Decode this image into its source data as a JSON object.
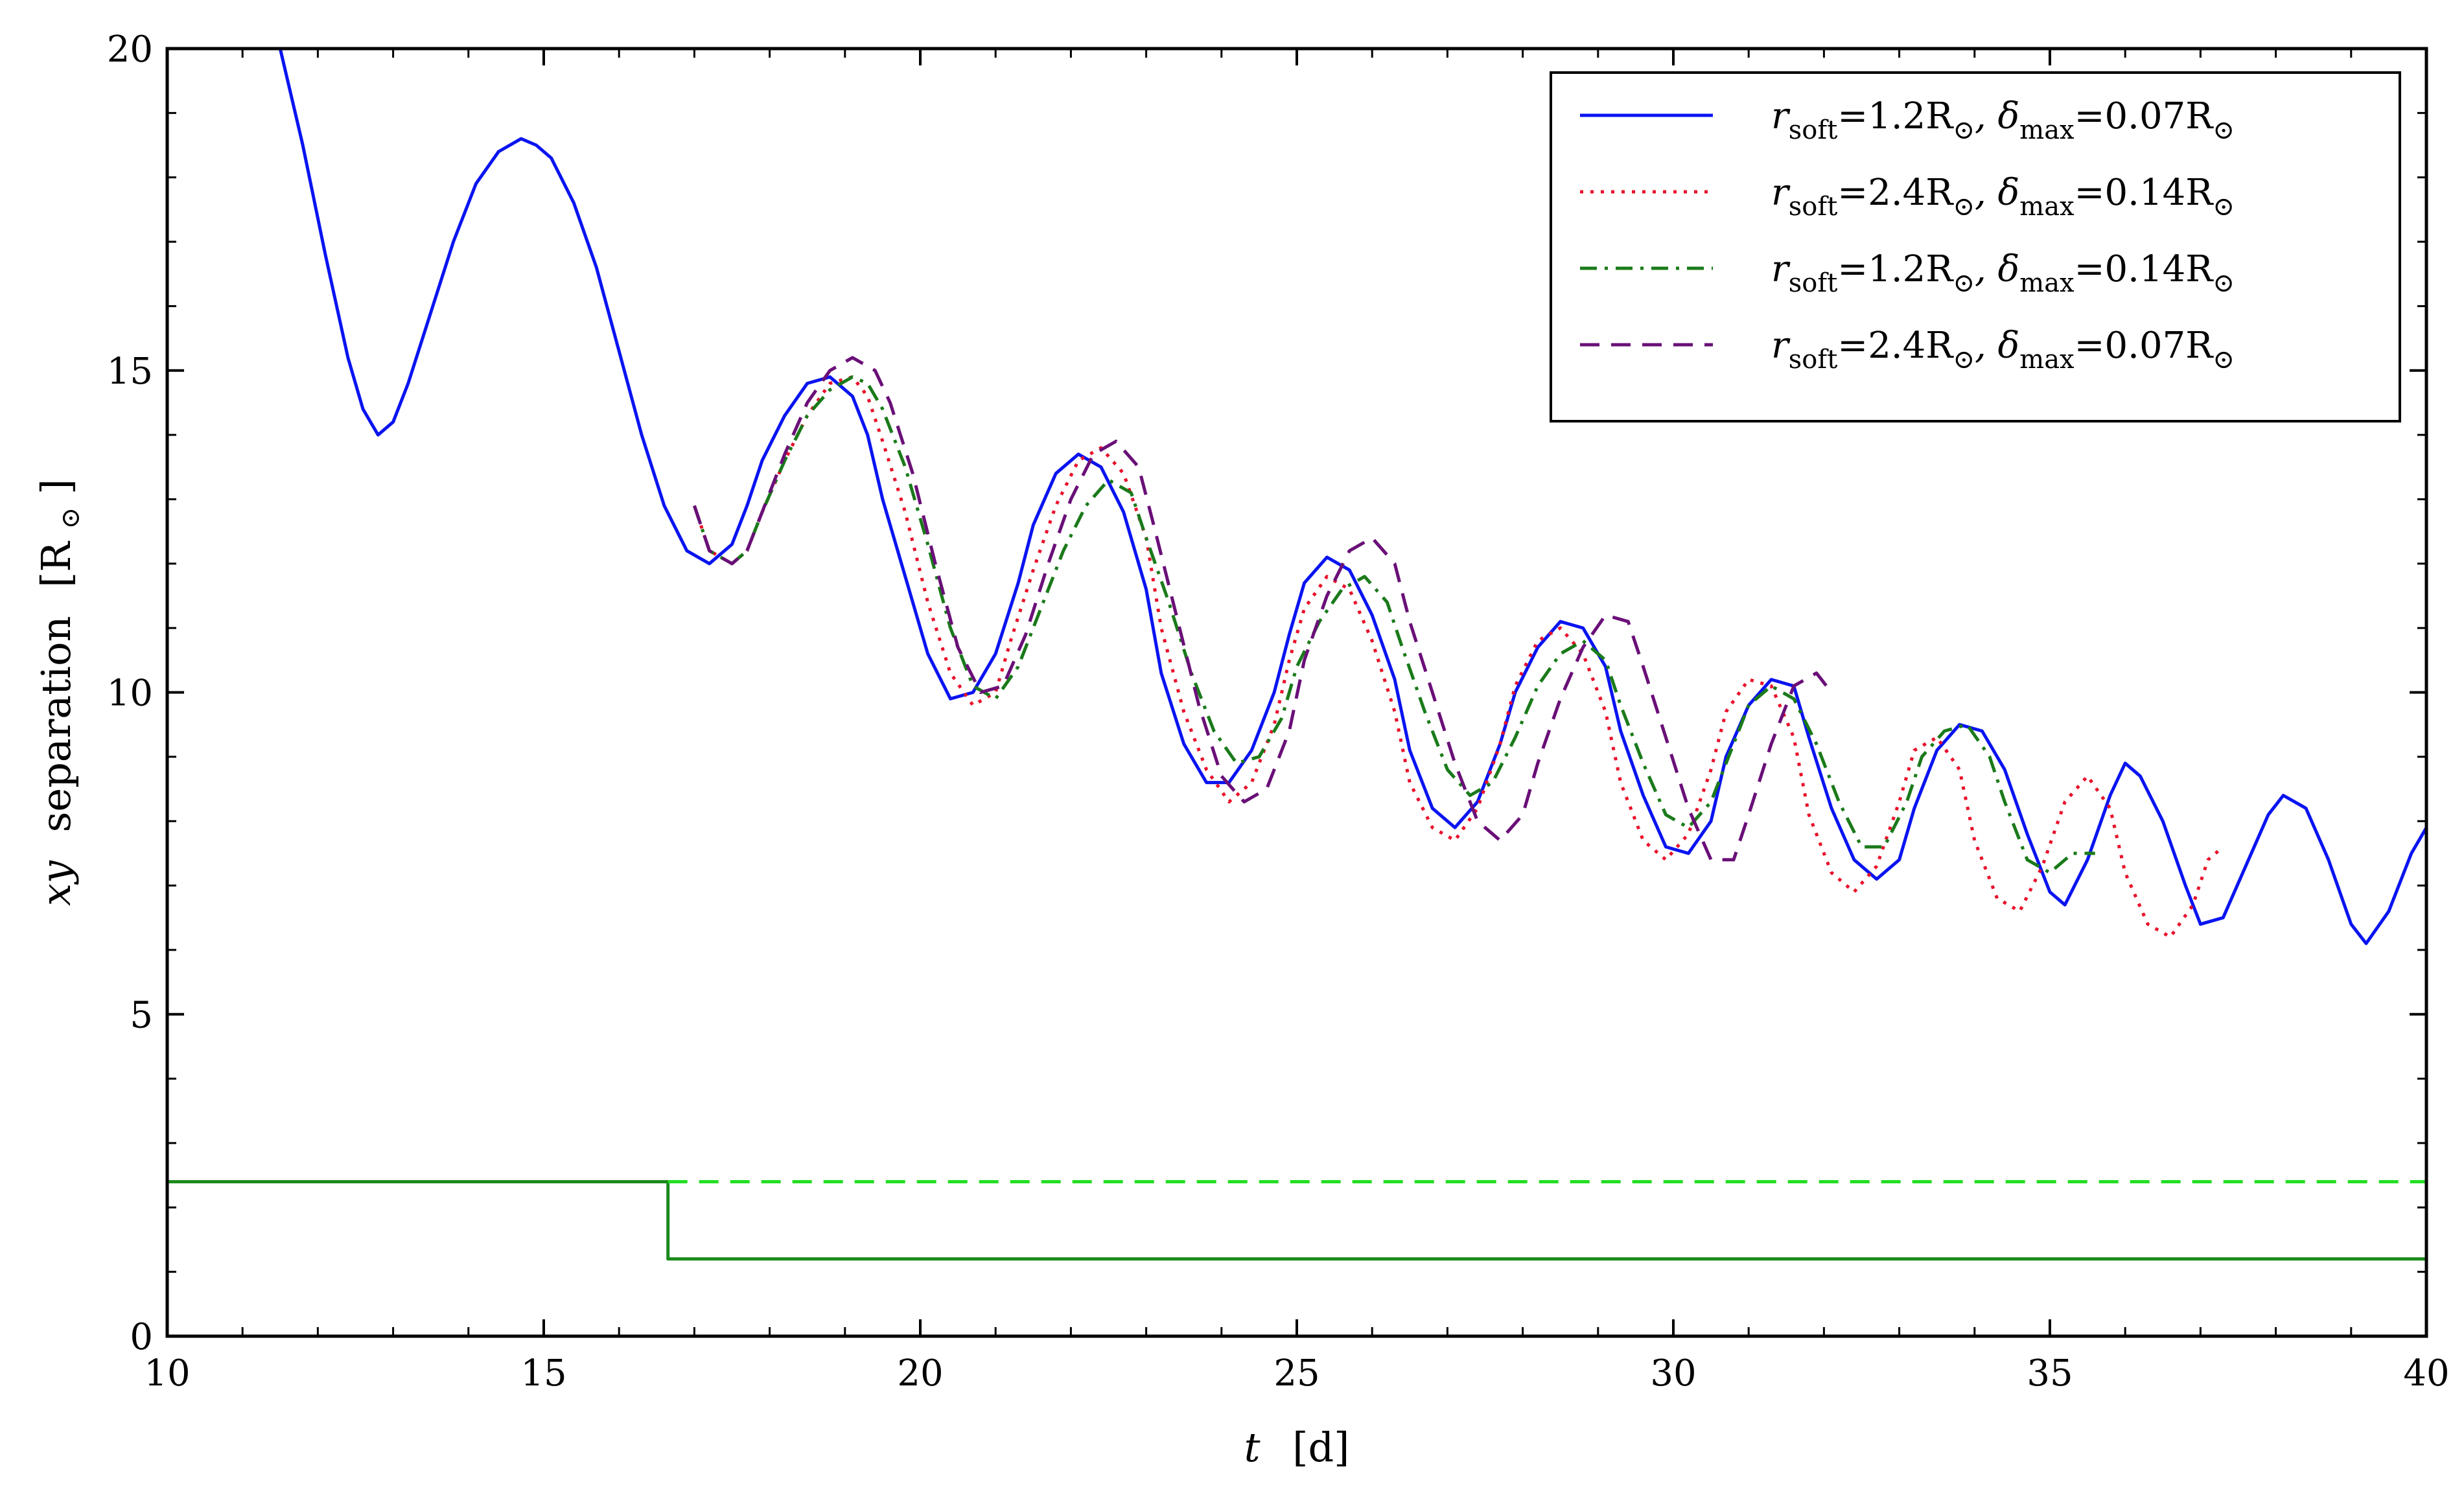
{
  "chart_data": {
    "type": "line",
    "title": "",
    "xlabel": {
      "symbol": "t",
      "unit": "[d]"
    },
    "ylabel": {
      "symbol": "xy",
      "word": "separation",
      "unit": "[R",
      "unit_sub": "⊙",
      "unit_close": "]"
    },
    "xlim": [
      10,
      40
    ],
    "ylim": [
      0,
      20
    ],
    "xticks": [
      10,
      15,
      20,
      25,
      30,
      35,
      40
    ],
    "yticks": [
      0,
      5,
      10,
      15,
      20
    ],
    "grid": false,
    "legend_position": "top-right",
    "series": [
      {
        "label_parts": [
          "r",
          "soft",
          "=1.2R",
          "⊙",
          ", δ",
          "max",
          "=0.07R",
          "⊙"
        ],
        "color": "#0a14f0",
        "style": "solid",
        "x": [
          11.5,
          11.8,
          12.1,
          12.4,
          12.6,
          12.8,
          13.0,
          13.2,
          13.5,
          13.8,
          14.1,
          14.4,
          14.7,
          14.9,
          15.1,
          15.4,
          15.7,
          16.0,
          16.3,
          16.6,
          16.9,
          17.2,
          17.5,
          17.7,
          17.9,
          18.2,
          18.5,
          18.8,
          19.1,
          19.3,
          19.5,
          19.8,
          20.1,
          20.4,
          20.7,
          21.0,
          21.3,
          21.5,
          21.8,
          22.1,
          22.4,
          22.7,
          23.0,
          23.2,
          23.5,
          23.8,
          24.1,
          24.4,
          24.7,
          24.9,
          25.1,
          25.4,
          25.7,
          26.0,
          26.3,
          26.5,
          26.8,
          27.1,
          27.4,
          27.7,
          27.9,
          28.2,
          28.5,
          28.8,
          29.1,
          29.3,
          29.6,
          29.9,
          30.2,
          30.5,
          30.7,
          31.0,
          31.3,
          31.6,
          31.8,
          32.1,
          32.4,
          32.7,
          33.0,
          33.2,
          33.5,
          33.8,
          34.1,
          34.4,
          34.7,
          35.0,
          35.2,
          35.5,
          35.8,
          36.0,
          36.2,
          36.5,
          36.8,
          37.0,
          37.3,
          37.6,
          37.9,
          38.1,
          38.4,
          38.7,
          39.0,
          39.2,
          39.5,
          39.8,
          40.0
        ],
        "y": [
          20.0,
          18.5,
          16.8,
          15.2,
          14.4,
          14.0,
          14.2,
          14.8,
          15.9,
          17.0,
          17.9,
          18.4,
          18.6,
          18.5,
          18.3,
          17.6,
          16.6,
          15.3,
          14.0,
          12.9,
          12.2,
          12.0,
          12.3,
          12.9,
          13.6,
          14.3,
          14.8,
          14.9,
          14.6,
          14.0,
          13.0,
          11.8,
          10.6,
          9.9,
          10.0,
          10.6,
          11.7,
          12.6,
          13.4,
          13.7,
          13.5,
          12.8,
          11.6,
          10.3,
          9.2,
          8.6,
          8.6,
          9.1,
          10.0,
          10.9,
          11.7,
          12.1,
          11.9,
          11.2,
          10.2,
          9.1,
          8.2,
          7.9,
          8.3,
          9.2,
          10.0,
          10.7,
          11.1,
          11.0,
          10.4,
          9.4,
          8.4,
          7.6,
          7.5,
          8.0,
          9.0,
          9.8,
          10.2,
          10.1,
          9.3,
          8.2,
          7.4,
          7.1,
          7.4,
          8.2,
          9.1,
          9.5,
          9.4,
          8.8,
          7.8,
          6.9,
          6.7,
          7.4,
          8.4,
          8.9,
          8.7,
          8.0,
          7.0,
          6.4,
          6.5,
          7.3,
          8.1,
          8.4,
          8.2,
          7.4,
          6.4,
          6.1,
          6.6,
          7.5,
          7.9
        ]
      },
      {
        "label_parts": [
          "r",
          "soft",
          "=2.4R",
          "⊙",
          ", δ",
          "max",
          "=0.14R",
          "⊙"
        ],
        "color": "#e8102a",
        "style": "dotted",
        "x": [
          17.0,
          17.2,
          17.5,
          17.7,
          17.9,
          18.2,
          18.5,
          18.8,
          19.1,
          19.3,
          19.5,
          19.8,
          20.1,
          20.4,
          20.7,
          21.0,
          21.2,
          21.5,
          21.8,
          22.1,
          22.4,
          22.7,
          23.0,
          23.2,
          23.5,
          23.8,
          24.1,
          24.4,
          24.7,
          24.9,
          25.1,
          25.4,
          25.7,
          26.0,
          26.3,
          26.5,
          26.8,
          27.1,
          27.4,
          27.7,
          27.9,
          28.2,
          28.5,
          28.8,
          29.1,
          29.3,
          29.6,
          29.9,
          30.2,
          30.5,
          30.7,
          31.0,
          31.3,
          31.6,
          31.8,
          32.1,
          32.4,
          32.7,
          33.0,
          33.2,
          33.5,
          33.8,
          34.0,
          34.3,
          34.6,
          34.9,
          35.2,
          35.5,
          35.8,
          36.0,
          36.3,
          36.6,
          36.9,
          37.1,
          37.3
        ],
        "y": [
          12.9,
          12.2,
          12.0,
          12.2,
          12.8,
          13.6,
          14.3,
          14.8,
          14.9,
          14.6,
          13.9,
          12.8,
          11.4,
          10.3,
          9.8,
          10.0,
          10.8,
          11.9,
          12.9,
          13.6,
          13.8,
          13.4,
          12.4,
          11.0,
          9.7,
          8.8,
          8.3,
          8.6,
          9.5,
          10.5,
          11.3,
          11.8,
          11.6,
          10.8,
          9.7,
          8.6,
          7.9,
          7.7,
          8.2,
          9.2,
          10.1,
          10.8,
          11.0,
          10.6,
          9.7,
          8.6,
          7.7,
          7.4,
          7.8,
          8.8,
          9.7,
          10.2,
          10.1,
          9.3,
          8.1,
          7.2,
          6.9,
          7.3,
          8.3,
          9.1,
          9.3,
          8.8,
          7.7,
          6.8,
          6.6,
          7.3,
          8.3,
          8.7,
          8.2,
          7.2,
          6.4,
          6.2,
          6.7,
          7.4,
          7.6
        ]
      },
      {
        "label_parts": [
          "r",
          "soft",
          "=1.2R",
          "⊙",
          ", δ",
          "max",
          "=0.14R",
          "⊙"
        ],
        "color": "#1a7a1a",
        "style": "dashdot",
        "x": [
          17.0,
          17.2,
          17.5,
          17.7,
          17.9,
          18.2,
          18.5,
          18.8,
          19.1,
          19.3,
          19.5,
          19.8,
          20.1,
          20.4,
          20.7,
          21.0,
          21.3,
          21.6,
          21.9,
          22.2,
          22.5,
          22.8,
          23.0,
          23.3,
          23.6,
          23.9,
          24.2,
          24.5,
          24.8,
          25.0,
          25.3,
          25.6,
          25.9,
          26.2,
          26.4,
          26.7,
          27.0,
          27.3,
          27.6,
          27.9,
          28.2,
          28.5,
          28.8,
          29.1,
          29.3,
          29.6,
          29.9,
          30.2,
          30.5,
          30.8,
          31.0,
          31.3,
          31.6,
          31.9,
          32.2,
          32.5,
          32.8,
          33.1,
          33.3,
          33.6,
          33.9,
          34.2,
          34.4,
          34.7,
          35.0,
          35.3,
          35.6
        ],
        "y": [
          12.9,
          12.2,
          12.0,
          12.2,
          12.8,
          13.6,
          14.3,
          14.7,
          14.9,
          14.8,
          14.4,
          13.5,
          12.3,
          11.0,
          10.1,
          9.9,
          10.4,
          11.3,
          12.2,
          12.9,
          13.3,
          13.1,
          12.4,
          11.4,
          10.3,
          9.4,
          8.9,
          9.0,
          9.6,
          10.4,
          11.1,
          11.6,
          11.8,
          11.4,
          10.7,
          9.7,
          8.8,
          8.4,
          8.6,
          9.3,
          10.1,
          10.6,
          10.8,
          10.5,
          9.8,
          8.9,
          8.1,
          7.9,
          8.3,
          9.2,
          9.8,
          10.1,
          9.9,
          9.2,
          8.3,
          7.6,
          7.6,
          8.3,
          9.0,
          9.4,
          9.5,
          9.0,
          8.3,
          7.4,
          7.2,
          7.5,
          7.5
        ]
      },
      {
        "label_parts": [
          "r",
          "soft",
          "=2.4R",
          "⊙",
          ", δ",
          "max",
          "=0.07R",
          "⊙"
        ],
        "color": "#6a0f78",
        "style": "dashed",
        "x": [
          17.0,
          17.2,
          17.5,
          17.7,
          17.9,
          18.2,
          18.5,
          18.8,
          19.1,
          19.4,
          19.6,
          19.9,
          20.2,
          20.5,
          20.8,
          21.1,
          21.4,
          21.7,
          22.0,
          22.3,
          22.6,
          22.9,
          23.1,
          23.4,
          23.7,
          24.0,
          24.3,
          24.6,
          24.9,
          25.1,
          25.4,
          25.7,
          26.0,
          26.3,
          26.5,
          26.8,
          27.1,
          27.4,
          27.7,
          28.0,
          28.2,
          28.5,
          28.8,
          29.1,
          29.4,
          29.6,
          29.9,
          30.2,
          30.5,
          30.8,
          31.0,
          31.3,
          31.6,
          31.9,
          32.1
        ],
        "y": [
          12.9,
          12.2,
          12.0,
          12.2,
          12.8,
          13.7,
          14.5,
          15.0,
          15.2,
          15.0,
          14.5,
          13.4,
          12.0,
          10.7,
          10.0,
          10.1,
          10.9,
          12.0,
          13.0,
          13.7,
          13.9,
          13.5,
          12.6,
          11.2,
          9.8,
          8.7,
          8.3,
          8.5,
          9.4,
          10.5,
          11.5,
          12.2,
          12.4,
          12.0,
          11.1,
          10.0,
          8.9,
          8.0,
          7.7,
          8.1,
          8.9,
          9.9,
          10.7,
          11.2,
          11.1,
          10.4,
          9.3,
          8.2,
          7.4,
          7.4,
          8.1,
          9.2,
          10.1,
          10.3,
          10.0
        ]
      },
      {
        "color": "#1a8a1a",
        "style": "step",
        "x": [
          10.0,
          16.65,
          16.65,
          40.0
        ],
        "y": [
          2.4,
          2.4,
          1.2,
          1.2
        ]
      },
      {
        "color": "#22dd22",
        "style": "dashed",
        "x": [
          16.65,
          40.0
        ],
        "y": [
          2.4,
          2.4
        ]
      }
    ]
  }
}
